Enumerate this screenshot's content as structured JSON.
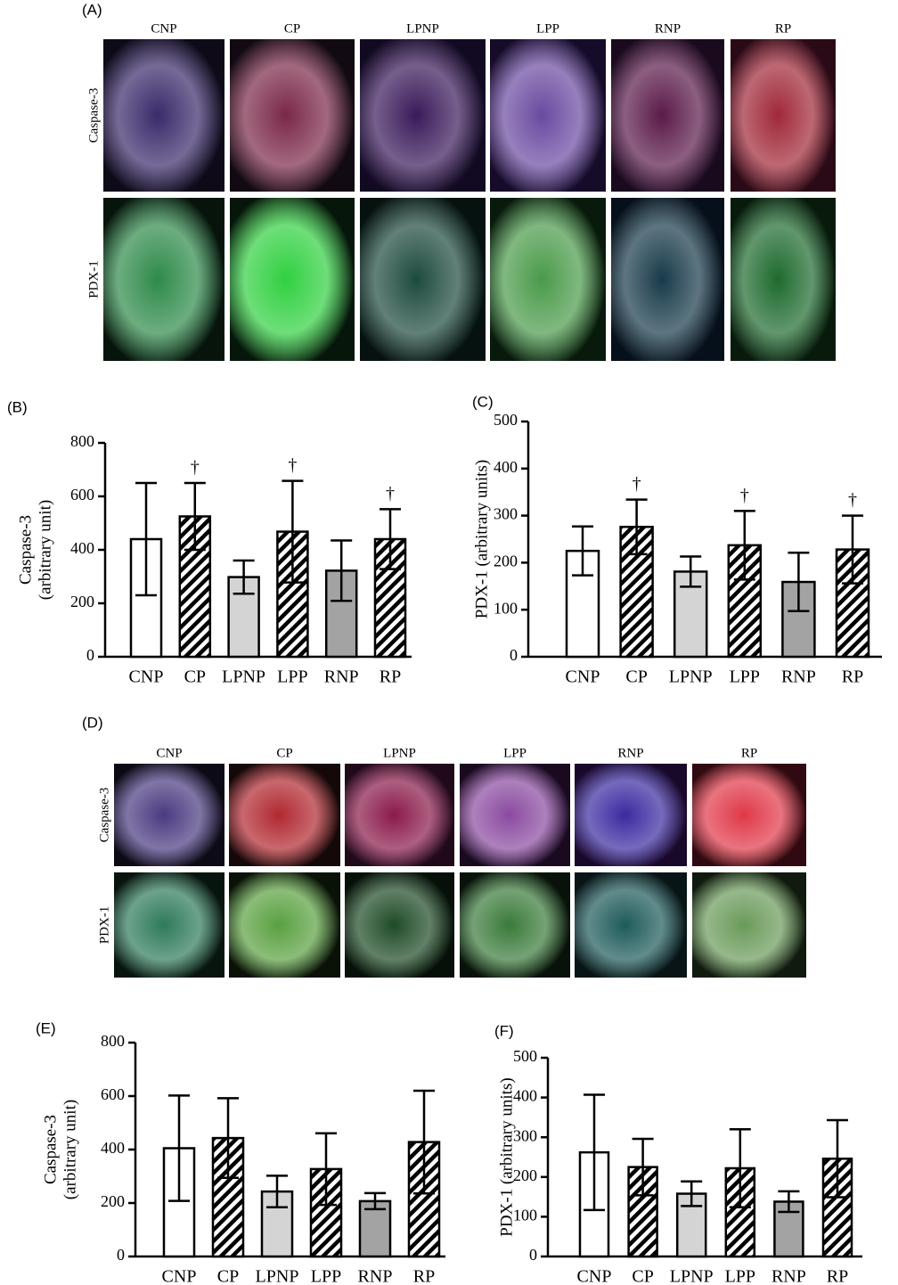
{
  "image_panels": [
    {
      "label": "(A)",
      "columns": [
        "CNP",
        "CP",
        "LPNP",
        "LPP",
        "RNP",
        "RP"
      ],
      "rows": [
        "Caspase-3",
        "PDX-1"
      ]
    },
    {
      "label": "(D)",
      "columns": [
        "CNP",
        "CP",
        "LPNP",
        "LPP",
        "RNP",
        "RP"
      ],
      "rows": [
        "Caspase-3",
        "PDX-1"
      ]
    }
  ],
  "chart_data": [
    {
      "type": "bar",
      "panel_label": "(B)",
      "ylabel": [
        "Caspase-3",
        "(arbitrary unit)"
      ],
      "categories": [
        "CNP",
        "CP",
        "LPNP",
        "LPP",
        "RNP",
        "RP"
      ],
      "values": [
        440,
        525,
        298,
        468,
        322,
        440
      ],
      "errors": [
        210,
        125,
        62,
        190,
        113,
        112
      ],
      "markers": [
        null,
        "†",
        null,
        "†",
        null,
        "†"
      ],
      "colors": [
        "#ffffff",
        "#c4c4c4",
        "#d4d4d4",
        "#c4c4c4",
        "#a3a3a3",
        "#595959"
      ],
      "hatched": [
        false,
        true,
        false,
        true,
        false,
        true
      ],
      "ylim": [
        0,
        800
      ],
      "yticks": [
        0,
        200,
        400,
        600,
        800
      ]
    },
    {
      "type": "bar",
      "panel_label": "(C)",
      "ylabel": [
        "PDX-1 (arbitrary units)"
      ],
      "categories": [
        "CNP",
        "CP",
        "LPNP",
        "LPP",
        "RNP",
        "RP"
      ],
      "values": [
        225,
        276,
        181,
        237,
        159,
        228
      ],
      "errors": [
        52,
        58,
        32,
        73,
        62,
        72
      ],
      "markers": [
        null,
        "†",
        null,
        "†",
        null,
        "†"
      ],
      "colors": [
        "#ffffff",
        "#c4c4c4",
        "#d4d4d4",
        "#c4c4c4",
        "#a3a3a3",
        "#595959"
      ],
      "hatched": [
        false,
        true,
        false,
        true,
        false,
        true
      ],
      "ylim": [
        0,
        500
      ],
      "yticks": [
        0,
        100,
        200,
        300,
        400,
        500
      ]
    },
    {
      "type": "bar",
      "panel_label": "(E)",
      "ylabel": [
        "Caspase-3",
        "(arbitrary unit)"
      ],
      "categories": [
        "CNP",
        "CP",
        "LPNP",
        "LPP",
        "RNP",
        "RP"
      ],
      "values": [
        405,
        443,
        243,
        327,
        207,
        428
      ],
      "errors": [
        197,
        149,
        59,
        134,
        30,
        192
      ],
      "colors": [
        "#ffffff",
        "#c4c4c4",
        "#d4d4d4",
        "#c4c4c4",
        "#a3a3a3",
        "#595959"
      ],
      "hatched": [
        false,
        true,
        false,
        true,
        false,
        true
      ],
      "ylim": [
        0,
        800
      ],
      "yticks": [
        0,
        200,
        400,
        600,
        800
      ]
    },
    {
      "type": "bar",
      "panel_label": "(F)",
      "ylabel": [
        "PDX-1 (arbitrary units)"
      ],
      "categories": [
        "CNP",
        "CP",
        "LPNP",
        "LPP",
        "RNP",
        "RP"
      ],
      "values": [
        262,
        225,
        158,
        222,
        138,
        246
      ],
      "errors": [
        145,
        71,
        31,
        98,
        26,
        97
      ],
      "colors": [
        "#ffffff",
        "#c4c4c4",
        "#d4d4d4",
        "#c4c4c4",
        "#a3a3a3",
        "#595959"
      ],
      "hatched": [
        false,
        true,
        false,
        true,
        false,
        true
      ],
      "ylim": [
        0,
        500
      ],
      "yticks": [
        0,
        100,
        200,
        300,
        400,
        500
      ]
    }
  ]
}
